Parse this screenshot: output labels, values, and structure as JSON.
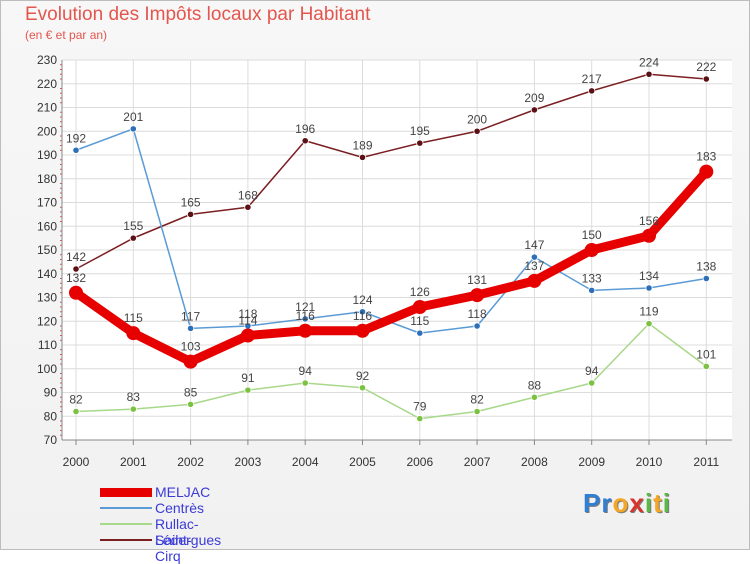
{
  "title": "Evolution des Impôts locaux par Habitant",
  "subtitle": "(en € et par an)",
  "logo": {
    "letters": [
      "P",
      "r",
      "o",
      "x",
      "i",
      "t",
      "i"
    ],
    "colors": [
      "#2f7fd4",
      "#2f7fd4",
      "#f5a623",
      "#d9342b",
      "#5ab847",
      "#f5a623",
      "#5ab847"
    ]
  },
  "chart_data": {
    "type": "line",
    "title": "Evolution des Impôts locaux par Habitant",
    "subtitle": "(en € et par an)",
    "xlabel": "",
    "ylabel": "",
    "ylim": [
      70,
      230
    ],
    "yticks": [
      70,
      80,
      90,
      100,
      110,
      120,
      130,
      140,
      150,
      160,
      170,
      180,
      190,
      200,
      210,
      220,
      230
    ],
    "categories": [
      "2000",
      "2001",
      "2002",
      "2003",
      "2004",
      "2005",
      "2006",
      "2007",
      "2008",
      "2009",
      "2010",
      "2011"
    ],
    "series": [
      {
        "name": "Lédergues",
        "color": "#7b1f22",
        "marker": "#5a1015",
        "values": [
          142,
          155,
          165,
          168,
          196,
          189,
          195,
          200,
          209,
          217,
          224,
          222
        ]
      },
      {
        "name": "Centrès",
        "color": "#5b9bd5",
        "marker": "#2d6fb8",
        "values": [
          192,
          201,
          117,
          118,
          121,
          124,
          115,
          118,
          147,
          133,
          134,
          138
        ]
      },
      {
        "name": "Rullac-Saint-Cirq",
        "color": "#a8d88a",
        "marker": "#7cc242",
        "values": [
          82,
          83,
          85,
          91,
          94,
          92,
          79,
          82,
          88,
          94,
          119,
          101
        ]
      },
      {
        "name": "MELJAC",
        "color": "#e60000",
        "marker": "#e60000",
        "values": [
          132,
          115,
          103,
          114,
          116,
          116,
          126,
          131,
          137,
          150,
          156,
          183
        ]
      }
    ],
    "legend": [
      "MELJAC",
      "Centrès",
      "Rullac-Saint-Cirq",
      "Lédergues"
    ],
    "legend_position": "bottom-left"
  }
}
